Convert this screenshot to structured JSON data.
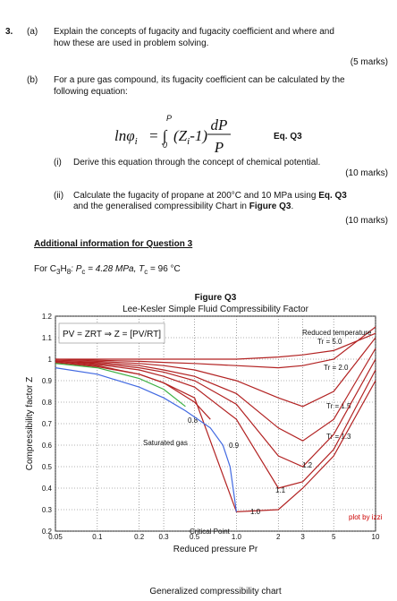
{
  "question": {
    "number": "3.",
    "a": {
      "label": "(a)",
      "lines": [
        "Explain the concepts of fugacity and fugacity coefficient and where and",
        "how these are used in problem solving."
      ],
      "marks": "(5 marks)"
    },
    "b": {
      "label": "(b)",
      "lines": [
        "For a pure gas compound, its fugacity coefficient can be calculated by the",
        "following equation:"
      ],
      "equation": {
        "lhs": "lnφ",
        "lhs_sub": "i",
        "eq": "= ∫",
        "lower": "0",
        "upper": "P",
        "integrand": "(Z",
        "integrand_sub": "i",
        "integrand_rest": "-1)",
        "num": "dP",
        "den": "P",
        "tag": "Eq. Q3"
      },
      "i": {
        "label": "(i)",
        "text": "Derive this equation through the concept of chemical potential.",
        "marks": "(10 marks)"
      },
      "ii": {
        "label": "(ii)",
        "line1": "Calculate the fugacity of propane at 200°C and 10 MPa using ",
        "line1_bold": "Eq. Q3",
        "line2": "and the generalised compressibility Chart in ",
        "line2_bold": "Figure Q3",
        "line2_end": ".",
        "marks": "(10 marks)"
      }
    }
  },
  "additional": {
    "heading": "Additional information for Question 3",
    "parts": [
      "For C",
      "3",
      "H",
      "8",
      ": P",
      "c",
      " = 4.28 MPa, T",
      "c",
      " = 96 °C"
    ]
  },
  "chart_data": {
    "type": "line",
    "title": "Figure Q3",
    "subtitle": "Lee-Kesler Simple Fluid Compressibility Factor",
    "equation": "PV = ZRT ⇒ Z = [PV/RT]",
    "legend_title": "Reduced temperature",
    "annotations": [
      "Critical Point",
      "plot by izzi"
    ],
    "x_label": "Reduced pressure Pr",
    "y_label": "Compressibility factor Z",
    "caption": "Generalized compressibility chart",
    "x_log": true,
    "grid": true,
    "xlim": [
      0.05,
      10
    ],
    "xticks": [
      0.05,
      0.1,
      0.2,
      0.3,
      0.5,
      {
        "value": 1,
        "label": "1.0"
      },
      2,
      3,
      5,
      10
    ],
    "ylim": [
      0.2,
      1.2
    ],
    "yticks": [
      0.2,
      0.3,
      0.4,
      0.5,
      0.6,
      0.7,
      0.8,
      0.9,
      1,
      1.1,
      1.2
    ],
    "series": [
      {
        "name": "Tr = 5.0",
        "color": "#b22222",
        "x": [
          0.05,
          0.1,
          0.2,
          0.3,
          0.5,
          1,
          2,
          3,
          5,
          10
        ],
        "values": [
          1,
          1,
          1,
          1,
          1,
          1,
          1.01,
          1.02,
          1.04,
          1.12
        ]
      },
      {
        "name": "Tr = 2.0",
        "color": "#b22222",
        "x": [
          0.05,
          0.1,
          0.2,
          0.3,
          0.5,
          1,
          2,
          3,
          5,
          10
        ],
        "values": [
          1,
          0.995,
          0.99,
          0.985,
          0.98,
          0.97,
          0.96,
          0.97,
          1.0,
          1.15
        ]
      },
      {
        "name": "Tr = 1.5",
        "color": "#b22222",
        "x": [
          0.05,
          0.1,
          0.2,
          0.3,
          0.5,
          1,
          2,
          3,
          5,
          10
        ],
        "values": [
          0.995,
          0.99,
          0.98,
          0.97,
          0.95,
          0.9,
          0.82,
          0.78,
          0.85,
          1.1
        ]
      },
      {
        "name": "Tr = 1.3",
        "color": "#b22222",
        "x": [
          0.05,
          0.1,
          0.2,
          0.3,
          0.5,
          1,
          2,
          3,
          5,
          10
        ],
        "values": [
          0.99,
          0.985,
          0.97,
          0.95,
          0.92,
          0.84,
          0.68,
          0.62,
          0.72,
          1.05
        ]
      },
      {
        "name": "1.2",
        "color": "#b22222",
        "x": [
          0.05,
          0.1,
          0.2,
          0.3,
          0.5,
          1,
          2,
          3,
          5,
          10
        ],
        "values": [
          0.99,
          0.98,
          0.96,
          0.94,
          0.9,
          0.79,
          0.55,
          0.5,
          0.65,
          1.0
        ]
      },
      {
        "name": "1.1",
        "color": "#b22222",
        "x": [
          0.05,
          0.1,
          0.2,
          0.3,
          0.5,
          1,
          2,
          3,
          5,
          10
        ],
        "values": [
          0.99,
          0.975,
          0.95,
          0.92,
          0.87,
          0.72,
          0.4,
          0.43,
          0.58,
          0.95
        ]
      },
      {
        "name": "1.0",
        "color": "#b22222",
        "x": [
          0.05,
          0.1,
          0.2,
          0.3,
          0.5,
          1,
          2,
          3,
          5,
          10
        ],
        "values": [
          0.985,
          0.97,
          0.93,
          0.89,
          0.82,
          0.29,
          0.3,
          0.4,
          0.55,
          0.9
        ]
      },
      {
        "name": "0.9",
        "color": "#b22222",
        "x": [
          0.05,
          0.1,
          0.2,
          0.3,
          0.5,
          0.65
        ],
        "values": [
          0.985,
          0.965,
          0.93,
          0.89,
          0.8,
          0.72
        ]
      },
      {
        "name": "0.8",
        "color": "#3cb043",
        "x": [
          0.05,
          0.1,
          0.2,
          0.3,
          0.43
        ],
        "values": [
          0.98,
          0.96,
          0.91,
          0.86,
          0.78
        ]
      },
      {
        "name": "Saturated gas",
        "color": "#4169e1",
        "x": [
          0.05,
          0.1,
          0.2,
          0.3,
          0.43,
          0.65,
          0.8,
          0.9,
          1
        ],
        "values": [
          0.96,
          0.93,
          0.87,
          0.82,
          0.76,
          0.68,
          0.6,
          0.5,
          0.29
        ]
      }
    ]
  }
}
